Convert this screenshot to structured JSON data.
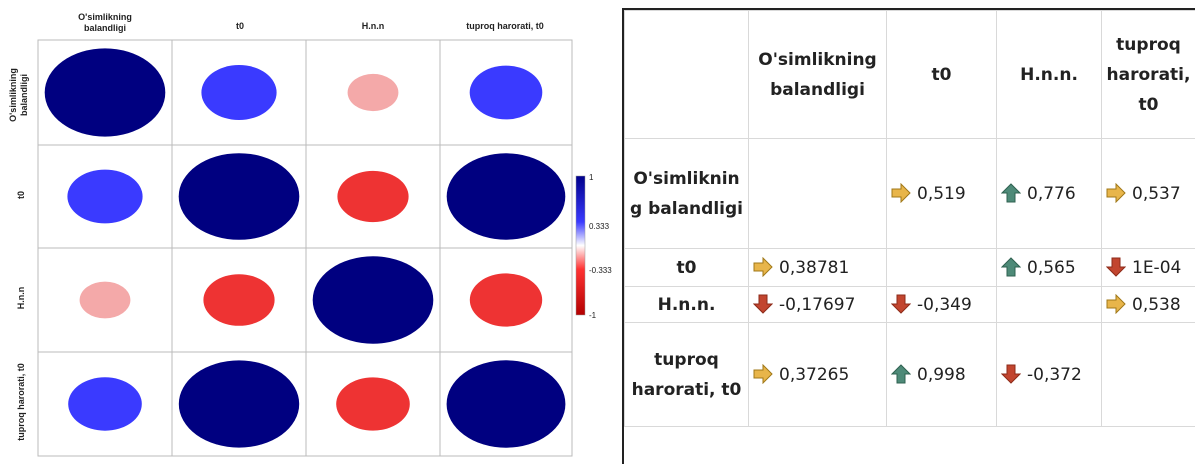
{
  "chart_data": [
    {
      "type": "heatmap",
      "variables": [
        "O'simlikning balandligi",
        "t0",
        "H.n.n",
        "tuproq harorati, t0"
      ],
      "column_labels": [
        "O'simlikning balandligi",
        "t0",
        "H.n.n",
        "tuproq harorati, t0"
      ],
      "row_labels": [
        "O'simlikning balandligi",
        "t0",
        "H.n.n",
        "tuproq harorati, t0"
      ],
      "matrix": [
        [
          1,
          0.388,
          -0.177,
          0.373
        ],
        [
          0.388,
          1,
          -0.349,
          0.998
        ],
        [
          -0.177,
          -0.349,
          1,
          -0.372
        ],
        [
          0.373,
          0.998,
          -0.372,
          1
        ]
      ],
      "colorbar": {
        "range": [
          -1,
          1
        ],
        "ticks": [
          "1",
          "0.333",
          "-0.333",
          "-1"
        ]
      },
      "colors": {
        "positive": "#000080",
        "mid_positive": "#3a3aff",
        "mid_negative": "#ff3333",
        "negative": "#cc0000",
        "light_negative": "#f4a9a9"
      }
    },
    {
      "type": "table",
      "columns": [
        "",
        "O'simlikning balandligi",
        "t0",
        "H.n.n.",
        "tuproq harorati, t0"
      ],
      "rows": [
        {
          "label": "O'simliknin g balandligi",
          "cells": [
            {
              "text": ""
            },
            {
              "text": "0,519",
              "icon": "right-arrow-icon"
            },
            {
              "text": "0,776",
              "icon": "up-arrow-icon"
            },
            {
              "text": "0,537",
              "icon": "right-arrow-icon"
            }
          ]
        },
        {
          "label": "t0",
          "cells": [
            {
              "text": "0,38781",
              "icon": "right-arrow-icon"
            },
            {
              "text": ""
            },
            {
              "text": "0,565",
              "icon": "up-arrow-icon"
            },
            {
              "text": "1E-04",
              "icon": "down-arrow-icon"
            }
          ]
        },
        {
          "label": "H.n.n.",
          "cells": [
            {
              "text": "-0,17697",
              "icon": "down-arrow-icon"
            },
            {
              "text": "-0,349",
              "icon": "down-arrow-icon"
            },
            {
              "text": ""
            },
            {
              "text": "0,538",
              "icon": "right-arrow-icon"
            }
          ]
        },
        {
          "label": "tuproq harorati, t0",
          "cells": [
            {
              "text": "0,37265",
              "icon": "right-arrow-icon"
            },
            {
              "text": "0,998",
              "icon": "up-arrow-icon"
            },
            {
              "text": "-0,372",
              "icon": "down-arrow-icon"
            },
            {
              "text": ""
            }
          ]
        }
      ],
      "icon_colors": {
        "right-arrow-icon": "#e8b54a",
        "up-arrow-icon": "#4e8a78",
        "down-arrow-icon": "#c2452f"
      }
    }
  ]
}
